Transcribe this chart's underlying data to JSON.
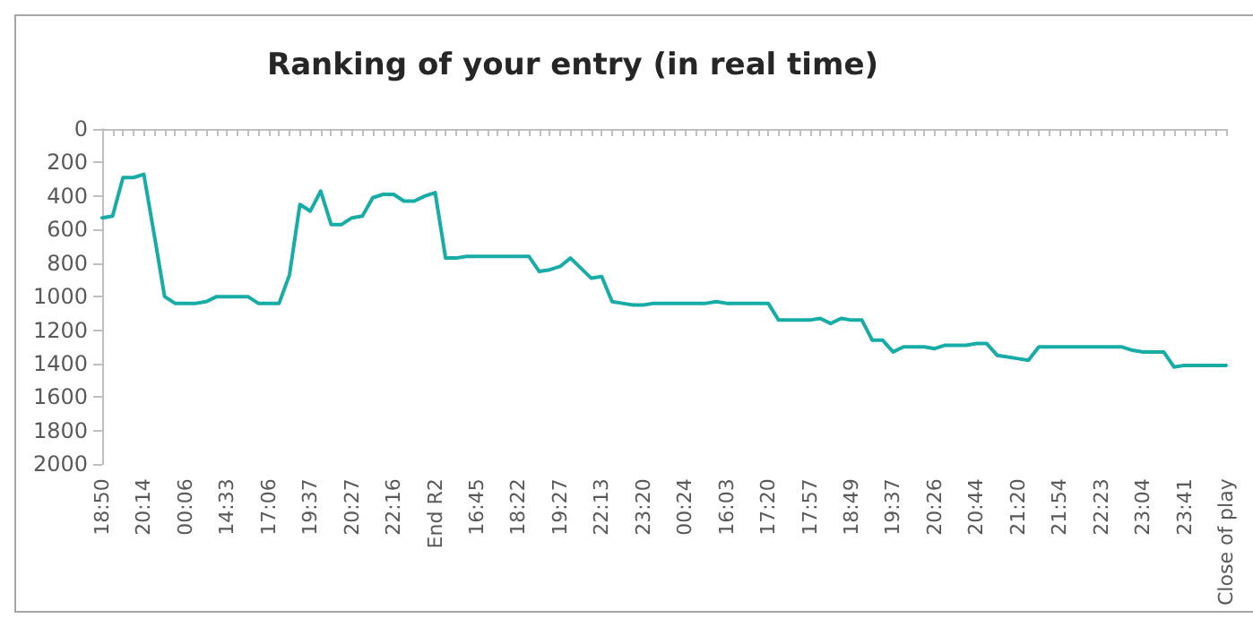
{
  "chart_data": {
    "type": "line",
    "title": "Ranking of your entry (in real time)",
    "categories": [
      "18:50",
      null,
      null,
      null,
      "20:14",
      null,
      null,
      null,
      "00:06",
      null,
      null,
      null,
      "14:33",
      null,
      null,
      null,
      "17:06",
      null,
      null,
      null,
      "19:37",
      null,
      null,
      null,
      "20:27",
      null,
      null,
      null,
      "22:16",
      null,
      null,
      null,
      "End R2",
      null,
      null,
      null,
      "16:45",
      null,
      null,
      null,
      "18:22",
      null,
      null,
      null,
      "19:27",
      null,
      null,
      null,
      "22:13",
      null,
      null,
      null,
      "23:20",
      null,
      null,
      null,
      "00:24",
      null,
      null,
      null,
      "16:03",
      null,
      null,
      null,
      "17:20",
      null,
      null,
      null,
      "17:57",
      null,
      null,
      null,
      "18:49",
      null,
      null,
      null,
      "19:37",
      null,
      null,
      null,
      "20:26",
      null,
      null,
      null,
      "20:44",
      null,
      null,
      null,
      "21:20",
      null,
      null,
      null,
      "21:54",
      null,
      null,
      null,
      "22:23",
      null,
      null,
      null,
      "23:04",
      null,
      null,
      null,
      "23:41",
      null,
      null,
      null,
      "Close of play"
    ],
    "series": [
      {
        "color": "#17aca6",
        "values": [
          530,
          520,
          290,
          290,
          270,
          630,
          1000,
          1040,
          1040,
          1040,
          1030,
          1000,
          1000,
          1000,
          1000,
          1040,
          1040,
          1040,
          870,
          450,
          490,
          370,
          570,
          570,
          530,
          520,
          410,
          390,
          390,
          430,
          430,
          400,
          380,
          770,
          770,
          760,
          760,
          760,
          760,
          760,
          760,
          760,
          850,
          840,
          820,
          770,
          830,
          890,
          880,
          1030,
          1040,
          1050,
          1050,
          1040,
          1040,
          1040,
          1040,
          1040,
          1040,
          1030,
          1040,
          1040,
          1040,
          1040,
          1040,
          1140,
          1140,
          1140,
          1140,
          1130,
          1160,
          1130,
          1140,
          1140,
          1260,
          1260,
          1330,
          1300,
          1300,
          1300,
          1310,
          1290,
          1290,
          1290,
          1280,
          1280,
          1350,
          1360,
          1370,
          1380,
          1300,
          1300,
          1300,
          1300,
          1300,
          1300,
          1300,
          1300,
          1300,
          1320,
          1330,
          1330,
          1330,
          1420,
          1410,
          1410,
          1410,
          1410,
          1410
        ]
      }
    ],
    "ylim": [
      2000,
      0
    ],
    "yticks": [
      0,
      200,
      400,
      600,
      800,
      1000,
      1200,
      1400,
      1600,
      1800,
      2000
    ],
    "grid": false,
    "marker": "none",
    "line_style": "solid"
  }
}
